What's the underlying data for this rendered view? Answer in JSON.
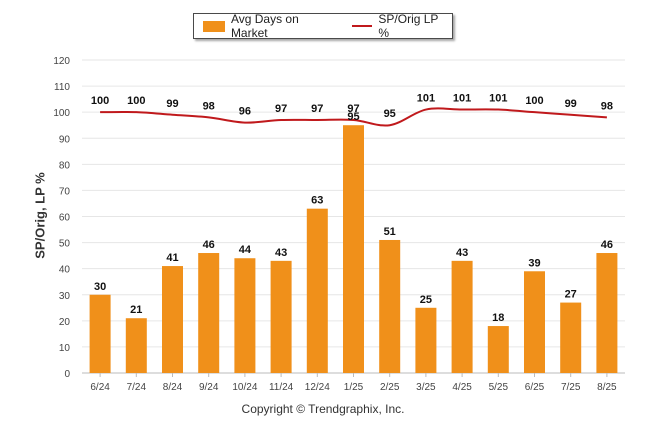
{
  "chart_data": {
    "type": "bar",
    "categories": [
      "6/24",
      "7/24",
      "8/24",
      "9/24",
      "10/24",
      "11/24",
      "12/24",
      "1/25",
      "2/25",
      "3/25",
      "4/25",
      "5/25",
      "6/25",
      "7/25",
      "8/25"
    ],
    "series": [
      {
        "name": "Avg Days on Market",
        "type": "bar",
        "color": "#f0901a",
        "values": [
          30,
          21,
          41,
          46,
          44,
          43,
          63,
          95,
          51,
          25,
          43,
          18,
          39,
          27,
          46
        ]
      },
      {
        "name": "SP/Orig LP %",
        "type": "line",
        "color": "#c0191c",
        "values": [
          100,
          100,
          99,
          98,
          96,
          97,
          97,
          97,
          95,
          101,
          101,
          101,
          100,
          99,
          98
        ]
      }
    ],
    "ylabel": "SP/Orig, LP %",
    "ylim": [
      0,
      120
    ],
    "yticks": [
      0,
      10,
      20,
      30,
      40,
      50,
      60,
      70,
      80,
      90,
      100,
      110,
      120
    ],
    "grid": true,
    "legend_position": "top-center"
  },
  "footer": {
    "copyright": "Copyright © Trendgraphix, Inc."
  }
}
